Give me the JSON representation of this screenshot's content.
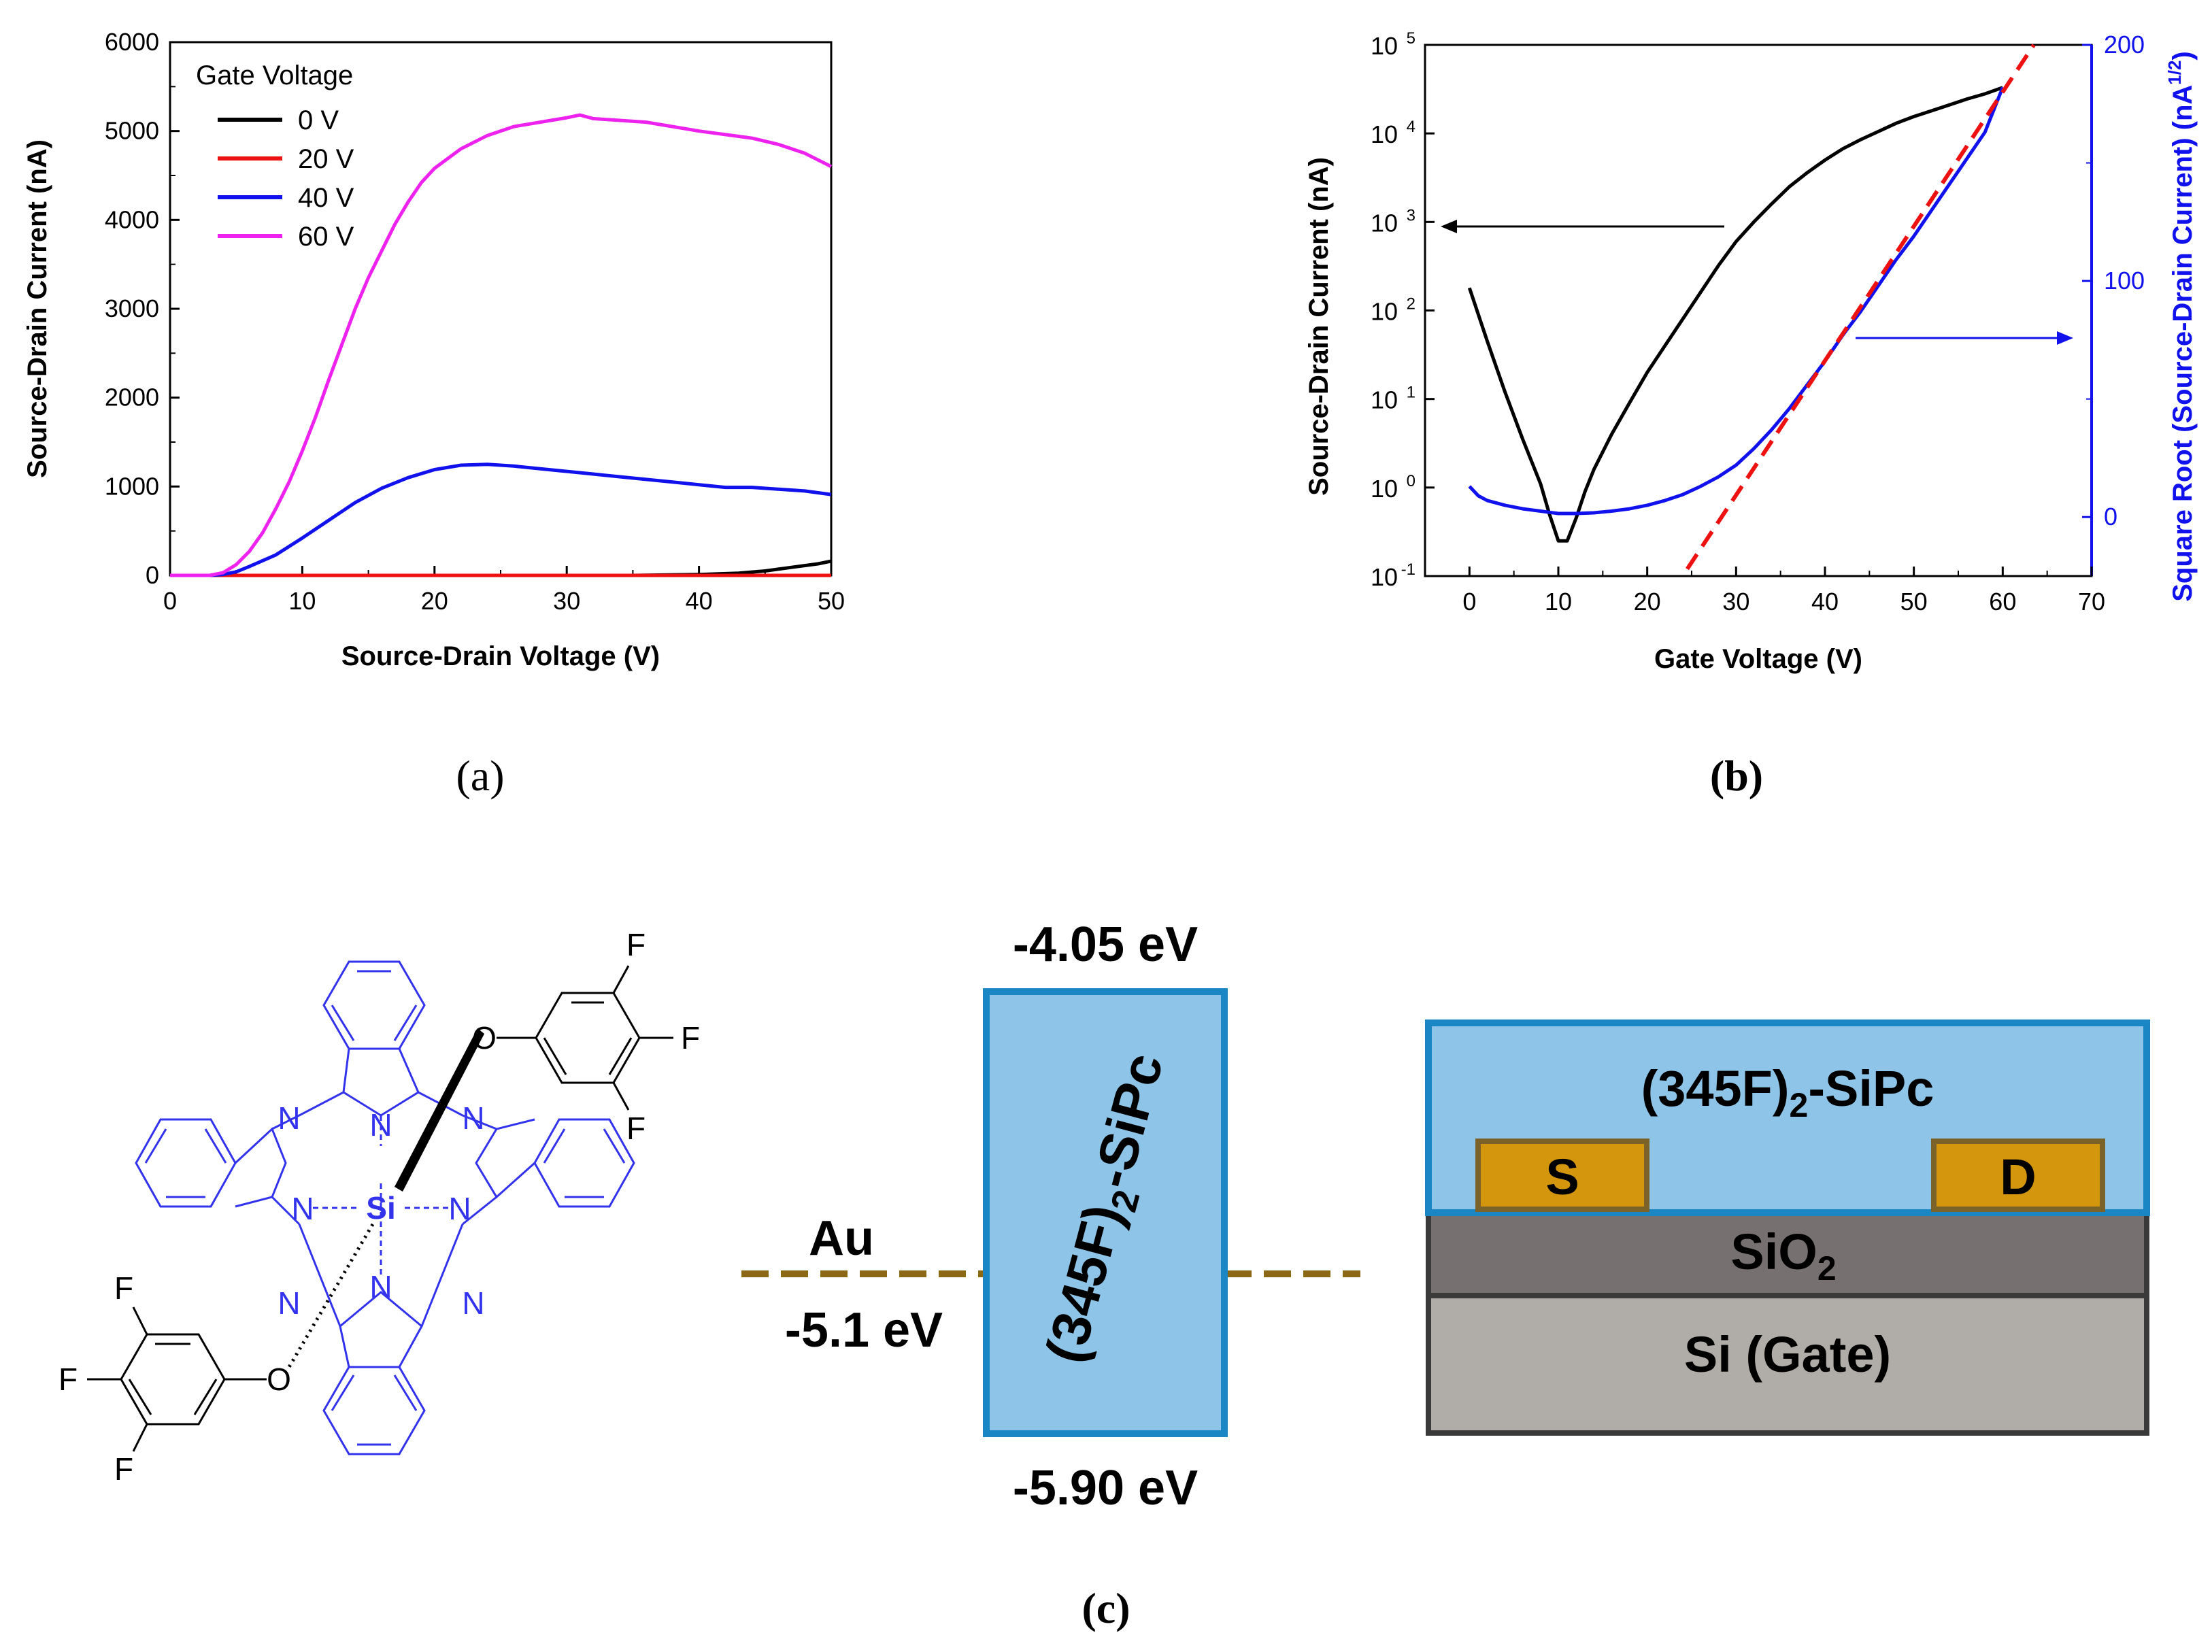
{
  "chart_data": [
    {
      "type": "line",
      "panel_label": "(a)",
      "xlabel": "Source-Drain Voltage (V)",
      "ylabel": "Source-Drain Current (nA)",
      "xlim": [
        0,
        50
      ],
      "ylim": [
        0,
        6000
      ],
      "xticks": [
        "0",
        "10",
        "20",
        "30",
        "40",
        "50"
      ],
      "yticks": [
        "0",
        "1000",
        "2000",
        "3000",
        "4000",
        "5000",
        "6000"
      ],
      "legend_title": "Gate Voltage",
      "legend_position": "top-left",
      "series": [
        {
          "name": "0 V",
          "color": "#000000",
          "x": [
            0,
            5,
            10,
            20,
            30,
            35,
            40,
            43,
            45,
            47,
            49,
            50
          ],
          "y": [
            0,
            0,
            0,
            0,
            0,
            0,
            10,
            25,
            50,
            90,
            130,
            160
          ]
        },
        {
          "name": "20 V",
          "color": "#ee1111",
          "x": [
            0,
            10,
            20,
            30,
            40,
            50
          ],
          "y": [
            0,
            0,
            0,
            0,
            0,
            0
          ]
        },
        {
          "name": "40 V",
          "color": "#1111ee",
          "x": [
            0,
            3,
            4,
            5,
            6,
            8,
            10,
            12,
            14,
            16,
            18,
            20,
            22,
            24,
            26,
            28,
            30,
            32,
            34,
            36,
            38,
            40,
            42,
            44,
            46,
            48,
            50
          ],
          "y": [
            0,
            0,
            10,
            40,
            100,
            230,
            420,
            620,
            820,
            980,
            1100,
            1190,
            1240,
            1250,
            1230,
            1200,
            1170,
            1140,
            1110,
            1080,
            1050,
            1020,
            990,
            990,
            970,
            950,
            910
          ]
        },
        {
          "name": "60 V",
          "color": "#ee22ee",
          "x": [
            0,
            3,
            4,
            5,
            6,
            7,
            8,
            9,
            10,
            11,
            12,
            13,
            14,
            15,
            16,
            17,
            18,
            19,
            20,
            22,
            24,
            26,
            28,
            30,
            31,
            32,
            34,
            36,
            38,
            40,
            42,
            44,
            46,
            48,
            50
          ],
          "y": [
            0,
            0,
            30,
            120,
            270,
            480,
            750,
            1050,
            1400,
            1780,
            2200,
            2600,
            3000,
            3350,
            3650,
            3950,
            4200,
            4420,
            4580,
            4800,
            4950,
            5050,
            5100,
            5150,
            5180,
            5140,
            5120,
            5100,
            5050,
            5000,
            4960,
            4920,
            4850,
            4750,
            4600
          ]
        }
      ]
    },
    {
      "type": "line",
      "panel_label": "(b)",
      "xlabel": "Gate Voltage (V)",
      "ylabel": "Source-Drain Current (nA)",
      "ylabel_right": "Square Root (Source-Drain Current) (nA",
      "ylabel_right_sup": "1/2",
      "ylabel_right_end": ")",
      "xlim": [
        -5,
        70
      ],
      "ylim_left_log10": [
        -1,
        5
      ],
      "ylim_right": [
        -25,
        200
      ],
      "xticks": [
        "0",
        "10",
        "20",
        "30",
        "40",
        "50",
        "60",
        "70"
      ],
      "yticks_left_base": "10",
      "yticks_left_exp": [
        "-1",
        "0",
        "1",
        "2",
        "3",
        "4",
        "5"
      ],
      "yticks_right": [
        "0",
        "100",
        "200"
      ],
      "series": [
        {
          "name": "Source-Drain Current",
          "axis": "left",
          "color": "#000000",
          "x": [
            0,
            2,
            4,
            6,
            8,
            9,
            10,
            11,
            12,
            13,
            14,
            16,
            18,
            20,
            22,
            24,
            26,
            28,
            30,
            32,
            34,
            36,
            38,
            40,
            42,
            44,
            46,
            48,
            50,
            52,
            54,
            56,
            58,
            60
          ],
          "y": [
            180,
            45,
            12,
            3.5,
            1.1,
            0.5,
            0.25,
            0.25,
            0.45,
            0.9,
            1.6,
            4,
            9,
            20,
            40,
            80,
            160,
            320,
            600,
            1000,
            1600,
            2500,
            3600,
            5000,
            6700,
            8500,
            10500,
            13000,
            15500,
            18000,
            21000,
            24500,
            28000,
            33000
          ]
        },
        {
          "name": "Square Root (Source-Drain Current)",
          "axis": "right",
          "color": "#1111ee",
          "x": [
            0,
            1,
            2,
            4,
            6,
            8,
            10,
            12,
            14,
            16,
            18,
            20,
            22,
            24,
            26,
            28,
            30,
            32,
            34,
            36,
            38,
            40,
            42,
            44,
            46,
            48,
            50,
            52,
            54,
            56,
            58,
            60
          ],
          "y": [
            13,
            9,
            7,
            5,
            3.5,
            2.5,
            1.5,
            1.5,
            1.8,
            2.5,
            3.5,
            5,
            7,
            9.5,
            13,
            17,
            22,
            29,
            37,
            46,
            56,
            66,
            77,
            87,
            98,
            109,
            119,
            130,
            141,
            152,
            163,
            182
          ]
        },
        {
          "name": "Linear fit",
          "axis": "right",
          "color": "#ee1111",
          "dashed": true,
          "x": [
            24.5,
            63.5
          ],
          "y": [
            -22,
            200
          ]
        }
      ],
      "annotations": [
        {
          "text": "arrow-left",
          "target_axis": "left",
          "color": "#000000"
        },
        {
          "text": "arrow-right",
          "target_axis": "right",
          "color": "#1111ee"
        }
      ]
    }
  ],
  "panel_c": {
    "label": "(c)",
    "energy": {
      "lumo": "-4.05 eV",
      "homo": "-5.90 eV",
      "metal": "Au",
      "metal_level": "-5.1 eV",
      "material_main": "(345F)",
      "material_sub": "2",
      "material_end": "-SiPc"
    },
    "device": {
      "semiconductor_main": "(345F)",
      "semiconductor_sub": "2",
      "semiconductor_end": "-SiPc",
      "source": "S",
      "drain": "D",
      "dielectric_main": "SiO",
      "dielectric_sub": "2",
      "gate": "Si (Gate)"
    },
    "molecule": {
      "center_atom": "Si",
      "nitrogen": "N",
      "oxygen": "O",
      "fluorine": "F"
    }
  }
}
